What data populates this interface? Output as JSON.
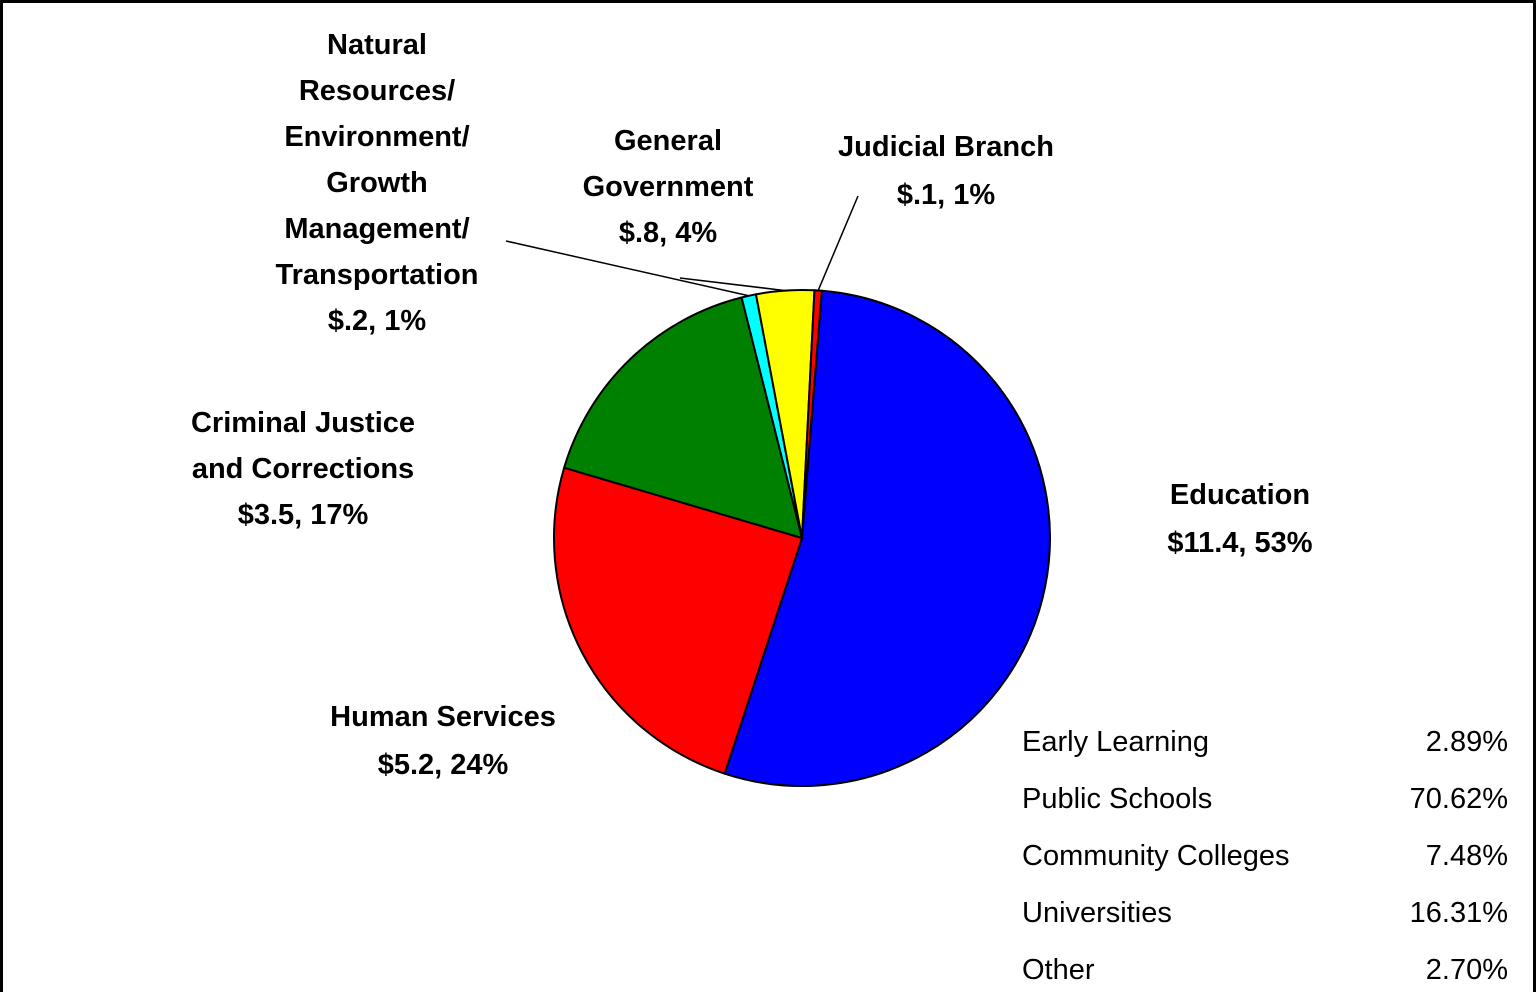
{
  "chart_data": {
    "type": "pie",
    "slices": [
      {
        "label_lines": [
          "Education"
        ],
        "value_text": "$11.4, 53%",
        "value": 11.4,
        "percent": 53,
        "color": "#0000FF"
      },
      {
        "label_lines": [
          "Human Services"
        ],
        "value_text": "$5.2, 24%",
        "value": 5.2,
        "percent": 24,
        "color": "#FF0000"
      },
      {
        "label_lines": [
          "Criminal Justice",
          "and Corrections"
        ],
        "value_text": "$3.5, 17%",
        "value": 3.5,
        "percent": 17,
        "color": "#008000"
      },
      {
        "label_lines": [
          "Natural",
          "Resources/",
          "Environment/",
          "Growth",
          "Management/",
          "Transportation"
        ],
        "value_text": "$.2, 1%",
        "value": 0.2,
        "percent": 1,
        "color": "#00FFFF"
      },
      {
        "label_lines": [
          "General",
          "Government"
        ],
        "value_text": "$.8, 4%",
        "value": 0.8,
        "percent": 4,
        "color": "#FFFF00"
      },
      {
        "label_lines": [
          "Judicial Branch"
        ],
        "value_text": "$.1, 1%",
        "value": 0.1,
        "percent": 1,
        "color": "#FF0000"
      }
    ],
    "education_breakdown": [
      {
        "label": "Early Learning",
        "value_text": "2.89%",
        "value": 2.89
      },
      {
        "label": "Public Schools",
        "value_text": "70.62%",
        "value": 70.62
      },
      {
        "label": "Community Colleges",
        "value_text": "7.48%",
        "value": 7.48
      },
      {
        "label": "Universities",
        "value_text": "16.31%",
        "value": 16.31
      },
      {
        "label": "Other",
        "value_text": "2.70%",
        "value": 2.7
      }
    ]
  }
}
